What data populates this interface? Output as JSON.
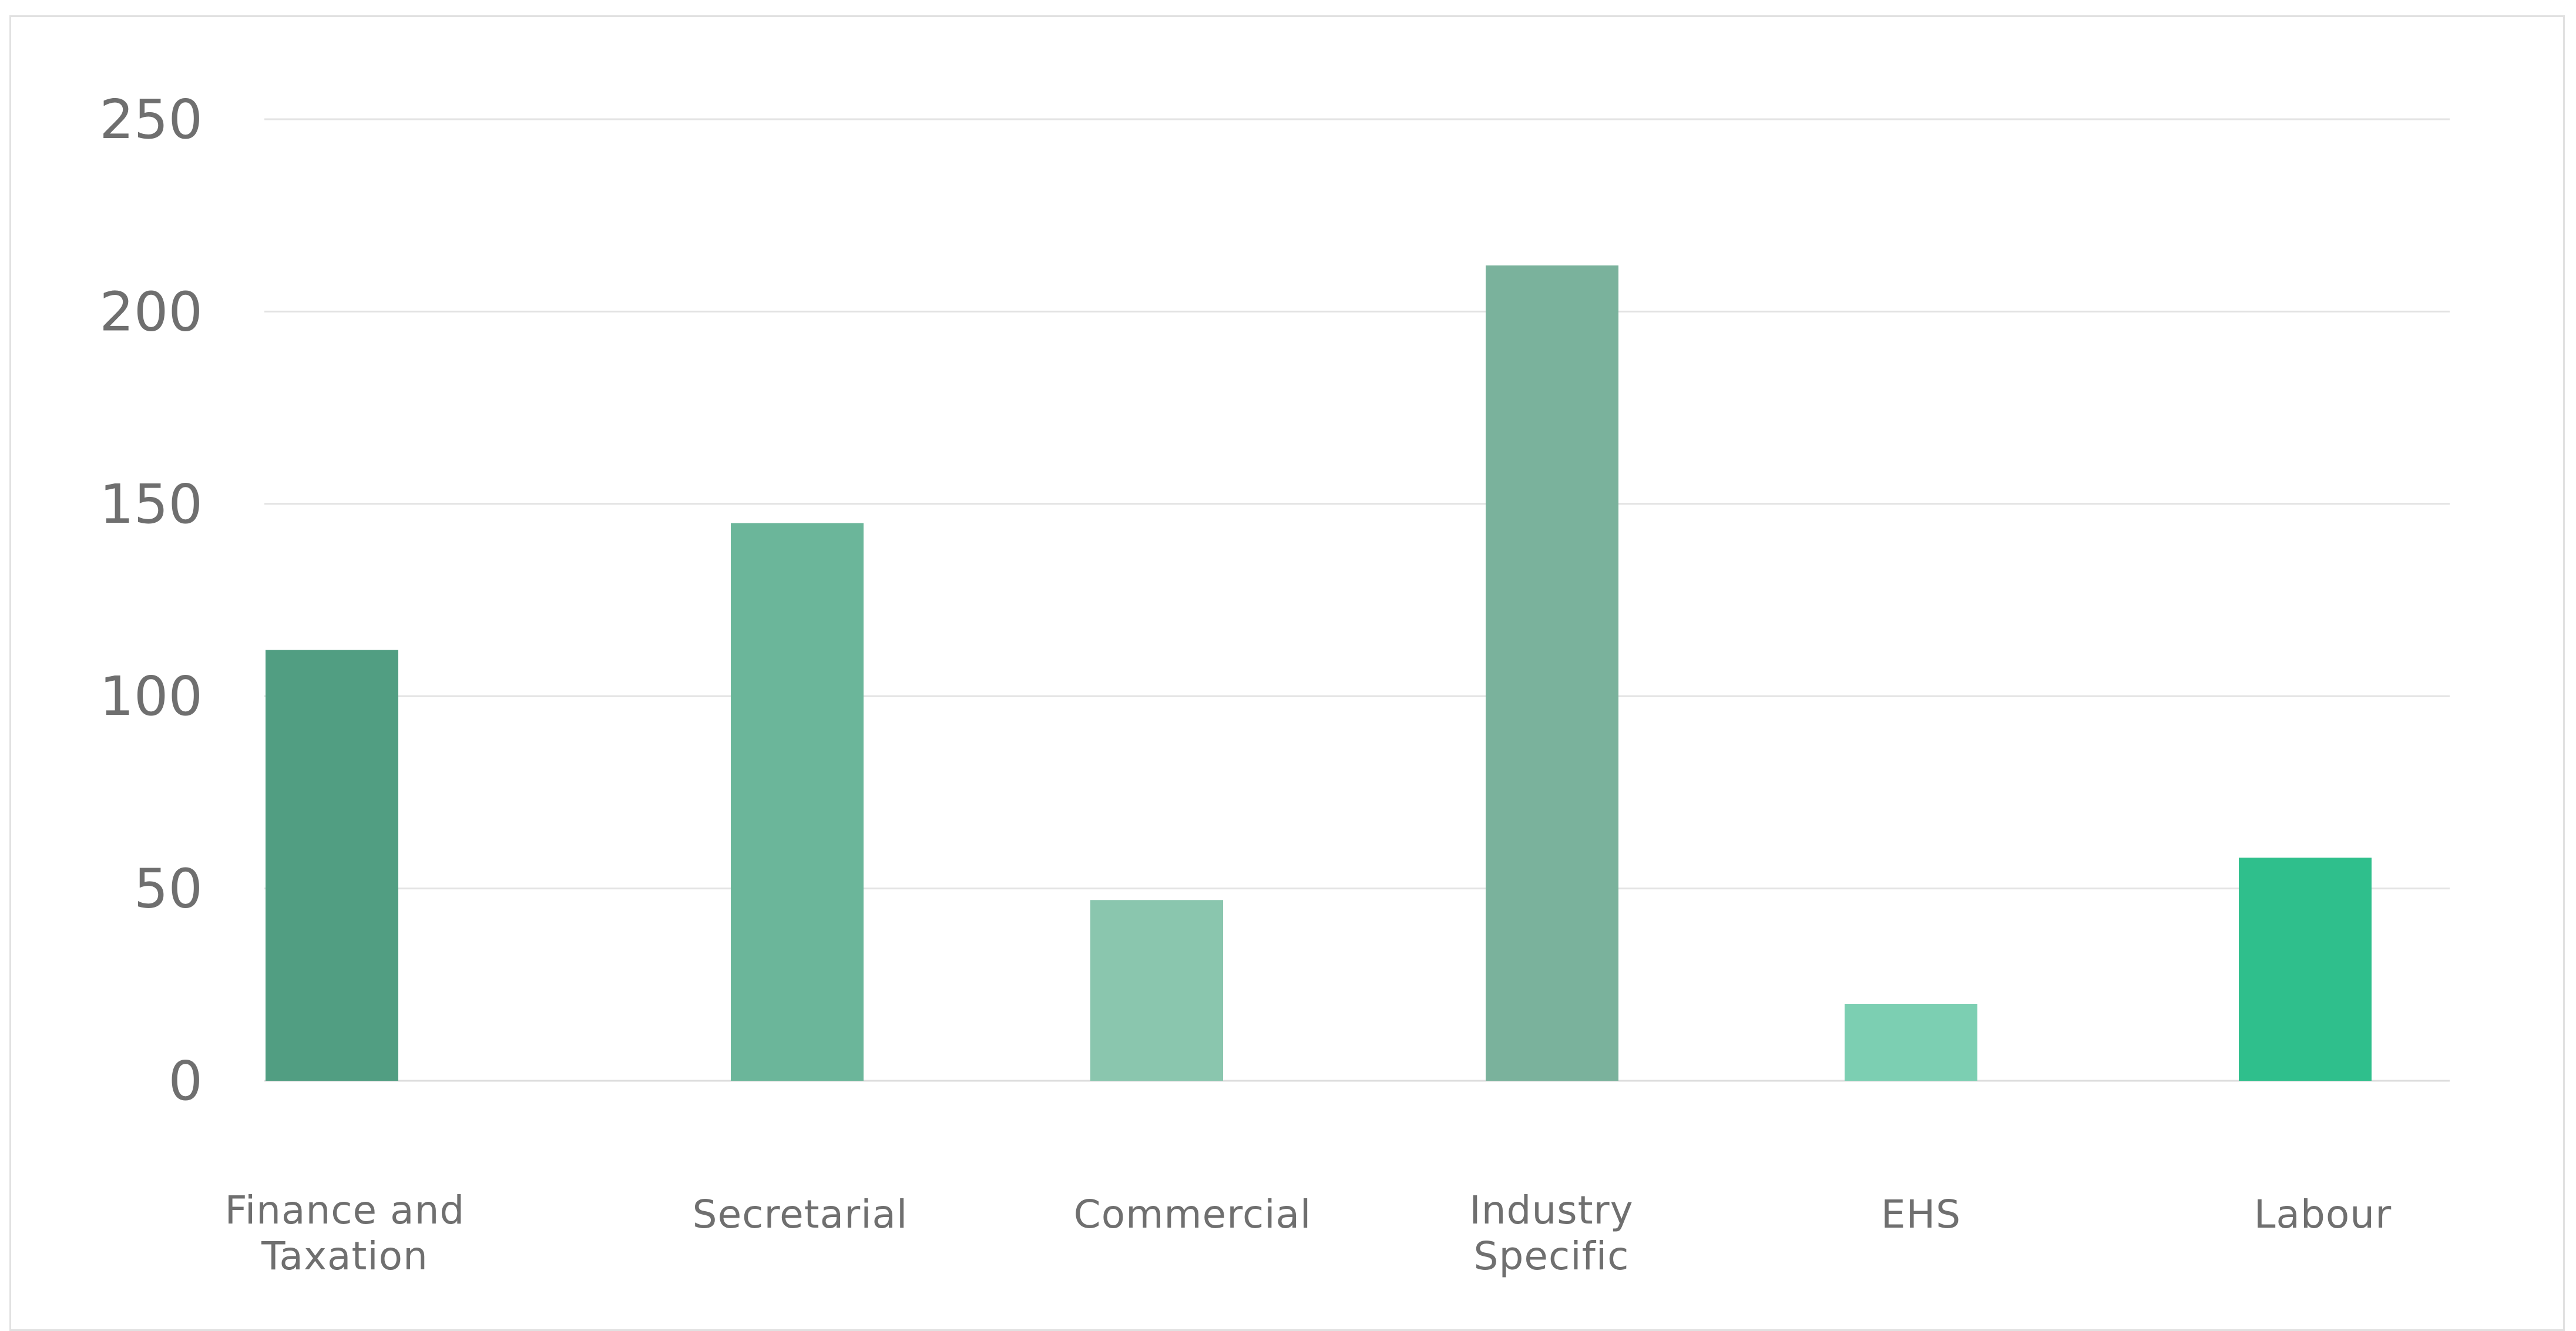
{
  "chart_data": {
    "type": "bar",
    "categories": [
      "Finance and Taxation",
      "Secretarial",
      "Commercial",
      "Industry Specific",
      "EHS",
      "Labour"
    ],
    "category_lines": [
      [
        "Finance and",
        "Taxation"
      ],
      [
        "Secretarial"
      ],
      [
        "Commercial"
      ],
      [
        "Industry",
        "Specific"
      ],
      [
        "EHS"
      ],
      [
        "Labour"
      ]
    ],
    "values": [
      112,
      145,
      47,
      212,
      20,
      58
    ],
    "colors": [
      "#519e82",
      "#6bb69a",
      "#8ac6ae",
      "#7ab29c",
      "#7ccfb2",
      "#2fbf8c"
    ],
    "yticks": [
      "0",
      "50",
      "100",
      "150",
      "200",
      "250"
    ],
    "ylim": [
      0,
      250
    ],
    "grid": true,
    "title": "",
    "xlabel": "",
    "ylabel": ""
  }
}
